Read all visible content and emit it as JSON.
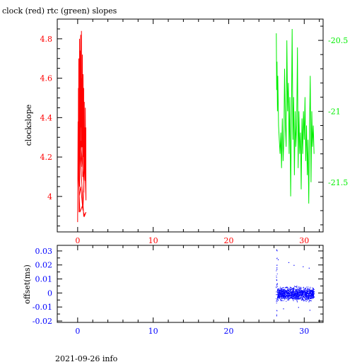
{
  "page": {
    "title": "clock (red) rtc (green) slopes",
    "footer": "2021-09-26 info"
  },
  "colors": {
    "clock": "#ff0000",
    "rtc": "#00ee00",
    "offset": "#0000ff",
    "axis": "#000000"
  },
  "chart_data": [
    {
      "type": "line",
      "name": "slopes",
      "xlim": [
        -2.7,
        32.5
      ],
      "ylabel": "clockslope",
      "grid": false,
      "x_ticks": [
        "0",
        "10",
        "20",
        "30"
      ],
      "y_left": {
        "lim": [
          3.82,
          4.9
        ],
        "ticks": [
          "4",
          "4.2",
          "4.4",
          "4.6",
          "4.8"
        ],
        "color": "#ff0000"
      },
      "y_right": {
        "lim": [
          -21.85,
          -20.35
        ],
        "ticks": [
          "-21.5",
          "-21",
          "-20.5"
        ],
        "color": "#00ee00"
      },
      "series": [
        {
          "axis": "left",
          "color": "#ff0000",
          "x": [
            0.0,
            0.05,
            0.08,
            0.1,
            0.13,
            0.15,
            0.18,
            0.2,
            0.22,
            0.25,
            0.28,
            0.3,
            0.32,
            0.35,
            0.38,
            0.4,
            0.42,
            0.45,
            0.48,
            0.5,
            0.52,
            0.55,
            0.58,
            0.6,
            0.62,
            0.65,
            0.68,
            0.7,
            0.72,
            0.75,
            0.78,
            0.8,
            0.82,
            0.85,
            0.88,
            0.9,
            0.92,
            0.95,
            0.98,
            1.0,
            1.02,
            1.05,
            1.08,
            1.1,
            0.95,
            0.7,
            0.4,
            0.2,
            0.05,
            0.3,
            0.6,
            0.9,
            1.1,
            0.8,
            0.5,
            0.3,
            0.1,
            0.4,
            0.8,
            1.05
          ],
          "y": [
            3.87,
            4.38,
            4.1,
            4.55,
            4.23,
            4.7,
            3.92,
            4.62,
            4.3,
            4.8,
            4.05,
            4.74,
            4.45,
            4.2,
            4.68,
            4.82,
            4.35,
            4.58,
            4.15,
            4.84,
            4.4,
            4.6,
            4.25,
            4.5,
            4.72,
            4.3,
            4.1,
            4.45,
            4.62,
            4.38,
            4.2,
            4.55,
            4.02,
            4.4,
            4.48,
            4.18,
            4.35,
            4.22,
            4.08,
            4.3,
            4.45,
            4.12,
            4.35,
            3.98,
            4.2,
            3.93,
            4.05,
            4.0,
            4.15,
            3.92,
            3.95,
            3.9,
            3.92,
            3.9,
            4.1,
            4.25,
            4.3,
            4.28,
            4.08,
            4.32
          ]
        },
        {
          "axis": "right",
          "color": "#00ee00",
          "x": [
            26.3,
            26.35,
            26.4,
            26.45,
            26.5,
            26.6,
            26.7,
            26.8,
            26.9,
            27.0,
            27.1,
            27.2,
            27.3,
            27.4,
            27.5,
            27.6,
            27.7,
            27.8,
            27.9,
            28.0,
            28.1,
            28.2,
            28.3,
            28.4,
            28.5,
            28.6,
            28.7,
            28.8,
            28.9,
            29.0,
            29.1,
            29.2,
            29.3,
            29.4,
            29.5,
            29.6,
            29.7,
            29.8,
            29.9,
            30.0,
            30.1,
            30.2,
            30.3,
            30.4,
            30.5,
            30.6,
            30.7,
            30.8,
            30.9,
            31.0,
            31.1,
            31.2,
            31.3
          ],
          "y": [
            -20.45,
            -20.85,
            -20.65,
            -21.0,
            -20.75,
            -21.1,
            -21.2,
            -21.3,
            -21.15,
            -21.4,
            -21.05,
            -21.35,
            -21.2,
            -20.7,
            -21.1,
            -21.25,
            -20.5,
            -21.0,
            -20.8,
            -21.3,
            -20.9,
            -21.6,
            -21.1,
            -20.42,
            -21.2,
            -20.9,
            -21.45,
            -21.0,
            -21.25,
            -21.1,
            -20.55,
            -21.4,
            -21.0,
            -21.3,
            -21.15,
            -21.55,
            -21.05,
            -21.3,
            -21.0,
            -21.2,
            -20.9,
            -21.35,
            -21.1,
            -21.45,
            -21.2,
            -21.65,
            -21.1,
            -20.75,
            -21.5,
            -21.0,
            -21.25,
            -21.1,
            -21.3
          ]
        }
      ]
    },
    {
      "type": "scatter",
      "name": "offset",
      "xlim": [
        -2.7,
        32.5
      ],
      "ylim": [
        -0.021,
        0.034
      ],
      "ylabel": "offset(ms)",
      "grid": false,
      "color": "#0000ff",
      "x_ticks": [
        "0",
        "10",
        "20",
        "30"
      ],
      "y_ticks": [
        "-0.02",
        "-0.01",
        "0",
        "0.01",
        "0.02",
        "0.03"
      ],
      "x_range_of_points": [
        26.2,
        31.3
      ],
      "typical_band": [
        -0.007,
        0.006
      ],
      "outliers": [
        {
          "x": 26.3,
          "y": 0.031
        },
        {
          "x": 26.3,
          "y": -0.016
        },
        {
          "x": 26.5,
          "y": 0.024
        },
        {
          "x": 27.9,
          "y": 0.022
        },
        {
          "x": 28.6,
          "y": 0.02
        },
        {
          "x": 29.8,
          "y": 0.019
        },
        {
          "x": 30.6,
          "y": 0.018
        },
        {
          "x": 27.2,
          "y": -0.011
        },
        {
          "x": 29.2,
          "y": -0.01
        },
        {
          "x": 30.7,
          "y": -0.012
        }
      ]
    }
  ]
}
